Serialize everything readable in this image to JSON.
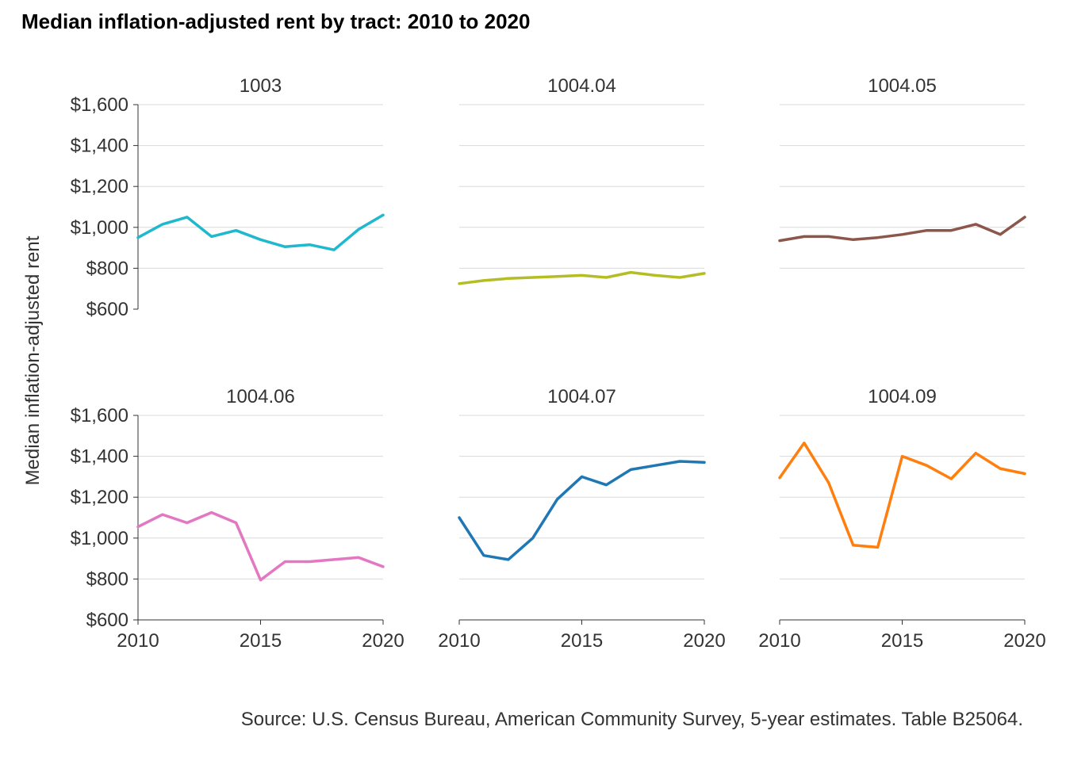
{
  "chart_data": {
    "type": "line",
    "title": "Median inflation-adjusted rent by tract: 2010 to 2020",
    "ylabel": "Median inflation-adjusted rent",
    "xlabel": "",
    "caption": "Source: U.S. Census Bureau, American Community Survey, 5-year estimates. Table B25064.",
    "xlim": [
      2010,
      2020
    ],
    "ylim": [
      600,
      1600
    ],
    "x_ticks": [
      2010,
      2015,
      2020
    ],
    "x_tick_labels": [
      "2010",
      "2015",
      "2020"
    ],
    "y_ticks": [
      600,
      800,
      1000,
      1200,
      1400,
      1600
    ],
    "y_tick_labels": [
      "$600",
      "$800",
      "$1,000",
      "$1,200",
      "$1,400",
      "$1,600"
    ],
    "grid": "horizontal major lines",
    "legend": "none",
    "x": [
      2010,
      2011,
      2012,
      2013,
      2014,
      2015,
      2016,
      2017,
      2018,
      2019,
      2020
    ],
    "panels": [
      {
        "label": "1003",
        "color": "#1fb8cd",
        "values": [
          950,
          1015,
          1050,
          955,
          985,
          940,
          905,
          915,
          890,
          990,
          1060
        ]
      },
      {
        "label": "1004.04",
        "color": "#b5bd25",
        "values": [
          725,
          740,
          750,
          755,
          760,
          765,
          755,
          780,
          765,
          755,
          775
        ]
      },
      {
        "label": "1004.05",
        "color": "#8c564b",
        "values": [
          935,
          955,
          955,
          940,
          950,
          965,
          985,
          985,
          1015,
          965,
          1050
        ]
      },
      {
        "label": "1004.06",
        "color": "#e377c2",
        "values": [
          1055,
          1115,
          1075,
          1125,
          1075,
          795,
          885,
          885,
          895,
          905,
          860
        ]
      },
      {
        "label": "1004.07",
        "color": "#1f77b4",
        "values": [
          1100,
          915,
          895,
          1000,
          1190,
          1300,
          1260,
          1335,
          1355,
          1375,
          1370
        ]
      },
      {
        "label": "1004.09",
        "color": "#ff7f0e",
        "values": [
          1295,
          1465,
          1270,
          965,
          955,
          1400,
          1355,
          1290,
          1415,
          1340,
          1315
        ]
      }
    ]
  }
}
